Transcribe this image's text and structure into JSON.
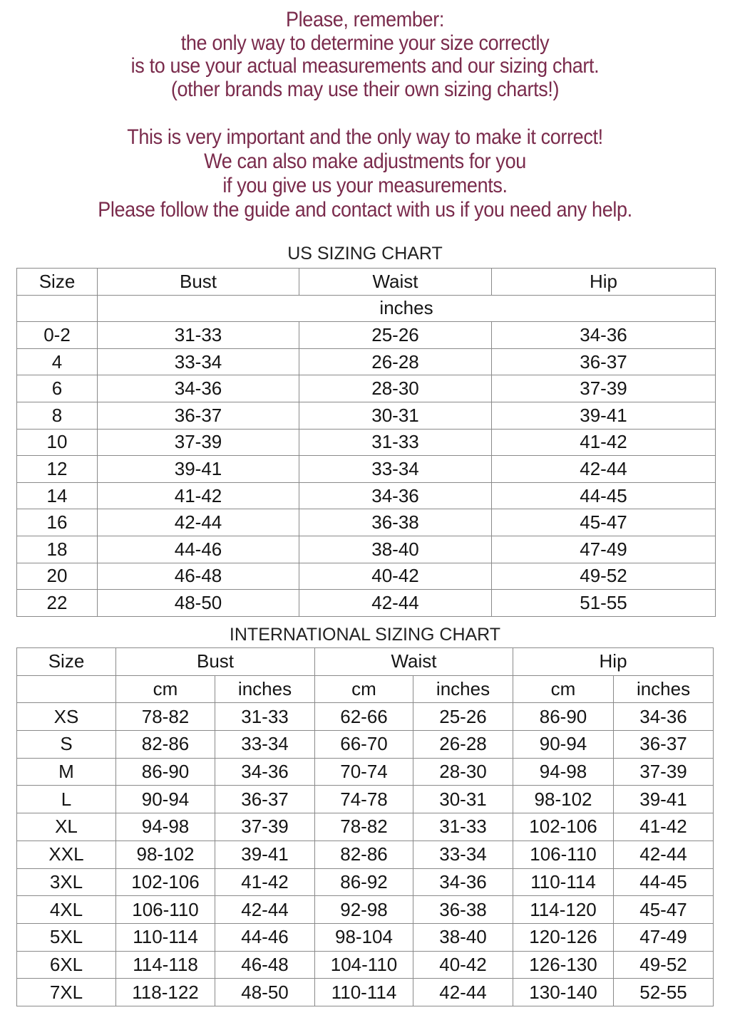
{
  "notice": {
    "paragraph1": [
      "Please, remember:",
      "the only way to determine your size correctly",
      "is to use your actual measurements and our sizing chart.",
      "(other brands may use their own sizing charts!)"
    ],
    "paragraph2": [
      "This is very important and the only way to make it correct!",
      "We can also make adjustments for you",
      "if you give us your measurements.",
      "Please follow the guide and contact with us if you need any help."
    ],
    "text_color": "#7a2b4c"
  },
  "us_chart": {
    "title": "US SIZING CHART",
    "headers": [
      "Size",
      "Bust",
      "Waist",
      "Hip"
    ],
    "unit": "inches",
    "rows": [
      [
        "0-2",
        "31-33",
        "25-26",
        "34-36"
      ],
      [
        "4",
        "33-34",
        "26-28",
        "36-37"
      ],
      [
        "6",
        "34-36",
        "28-30",
        "37-39"
      ],
      [
        "8",
        "36-37",
        "30-31",
        "39-41"
      ],
      [
        "10",
        "37-39",
        "31-33",
        "41-42"
      ],
      [
        "12",
        "39-41",
        "33-34",
        "42-44"
      ],
      [
        "14",
        "41-42",
        "34-36",
        "44-45"
      ],
      [
        "16",
        "42-44",
        "36-38",
        "45-47"
      ],
      [
        "18",
        "44-46",
        "38-40",
        "47-49"
      ],
      [
        "20",
        "46-48",
        "40-42",
        "49-52"
      ],
      [
        "22",
        "48-50",
        "42-44",
        "51-55"
      ]
    ]
  },
  "intl_chart": {
    "title": "INTERNATIONAL SIZING CHART",
    "headers": [
      "Size",
      "Bust",
      "Waist",
      "Hip"
    ],
    "subheaders": [
      "cm",
      "inches",
      "cm",
      "inches",
      "cm",
      "inches"
    ],
    "rows": [
      [
        "XS",
        "78-82",
        "31-33",
        "62-66",
        "25-26",
        "86-90",
        "34-36"
      ],
      [
        "S",
        "82-86",
        "33-34",
        "66-70",
        "26-28",
        "90-94",
        "36-37"
      ],
      [
        "M",
        "86-90",
        "34-36",
        "70-74",
        "28-30",
        "94-98",
        "37-39"
      ],
      [
        "L",
        "90-94",
        "36-37",
        "74-78",
        "30-31",
        "98-102",
        "39-41"
      ],
      [
        "XL",
        "94-98",
        "37-39",
        "78-82",
        "31-33",
        "102-106",
        "41-42"
      ],
      [
        "XXL",
        "98-102",
        "39-41",
        "82-86",
        "33-34",
        "106-110",
        "42-44"
      ],
      [
        "3XL",
        "102-106",
        "41-42",
        "86-92",
        "34-36",
        "110-114",
        "44-45"
      ],
      [
        "4XL",
        "106-110",
        "42-44",
        "92-98",
        "36-38",
        "114-120",
        "45-47"
      ],
      [
        "5XL",
        "110-114",
        "44-46",
        "98-104",
        "38-40",
        "120-126",
        "47-49"
      ],
      [
        "6XL",
        "114-118",
        "46-48",
        "104-110",
        "40-42",
        "126-130",
        "49-52"
      ],
      [
        "7XL",
        "118-122",
        "48-50",
        "110-114",
        "42-44",
        "130-140",
        "52-55"
      ]
    ]
  }
}
